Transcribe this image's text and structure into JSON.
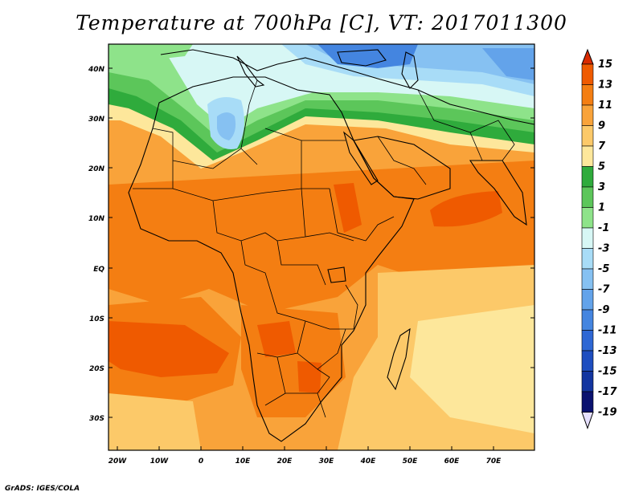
{
  "title": "Temperature at 700hPa [C], VT: 2017011300",
  "credit": "GrADS: IGES/COLA",
  "axes": {
    "lat_labels": [
      "40N",
      "30N",
      "20N",
      "10N",
      "EQ",
      "10S",
      "20S",
      "30S"
    ],
    "lon_labels": [
      "20W",
      "10W",
      "0",
      "10E",
      "20E",
      "30E",
      "40E",
      "50E",
      "60E",
      "70E"
    ]
  },
  "colorbar": {
    "labels": [
      "15",
      "13",
      "11",
      "9",
      "7",
      "5",
      "3",
      "1",
      "-1",
      "-3",
      "-5",
      "-7",
      "-9",
      "-11",
      "-13",
      "-15",
      "-17",
      "-19"
    ],
    "colors": [
      "#d92a00",
      "#ef5a00",
      "#f47e12",
      "#f9a33a",
      "#fcc969",
      "#fde79b",
      "#2fab3c",
      "#5cc65a",
      "#8ee38a",
      "#d7f7f5",
      "#a8dcf7",
      "#86c1f2",
      "#63a3ea",
      "#4485e0",
      "#2e67d4",
      "#1e4ec0",
      "#1335a0",
      "#0a1270"
    ]
  },
  "colors": {
    "land_border": "#000000",
    "warmest": "#d92a00",
    "coldest": "#0a1270"
  }
}
